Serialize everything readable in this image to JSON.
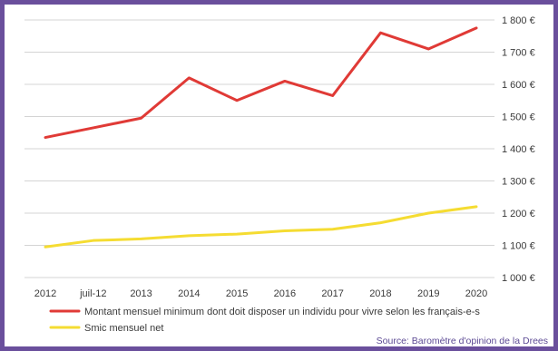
{
  "chart_data": {
    "type": "line",
    "x": [
      "2012",
      "juil-12",
      "2013",
      "2014",
      "2015",
      "2016",
      "2017",
      "2018",
      "2019",
      "2020"
    ],
    "ylim": [
      1000,
      1800
    ],
    "yticks": [
      1000,
      1100,
      1200,
      1300,
      1400,
      1500,
      1600,
      1700,
      1800
    ],
    "ytick_labels": [
      "1 000 €",
      "1 100 €",
      "1 200 €",
      "1 300 €",
      "1 400 €",
      "1 500 €",
      "1 600 €",
      "1 700 €",
      "1 800 €"
    ],
    "grid": "horizontal",
    "legend_position": "bottom-left",
    "series": [
      {
        "name": "Montant mensuel minimum dont doit disposer un individu pour vivre selon les français-e-s",
        "color": "#e03a36",
        "values": [
          1435,
          1465,
          1495,
          1620,
          1550,
          1610,
          1565,
          1760,
          1710,
          1775
        ]
      },
      {
        "name": "Smic mensuel net",
        "color": "#f5dc32",
        "values": [
          1095,
          1115,
          1120,
          1130,
          1135,
          1145,
          1150,
          1170,
          1200,
          1220
        ]
      }
    ],
    "source": "Source: Baromètre d'opinion de la Drees"
  },
  "colors": {
    "frame": "#6a4f9c",
    "grid": "#d4d4d4"
  }
}
